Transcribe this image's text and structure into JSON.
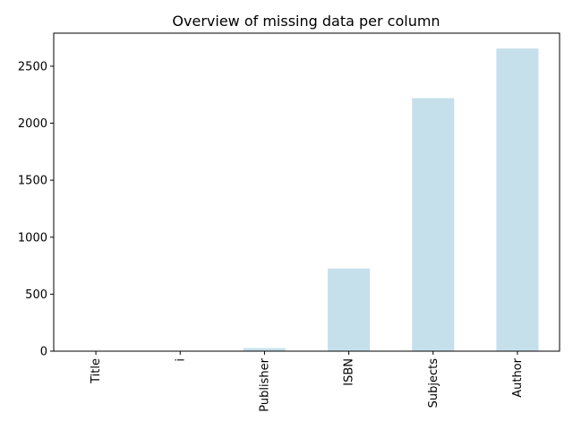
{
  "chart_data": {
    "type": "bar",
    "title": "Overview of missing data per column",
    "xlabel": "",
    "ylabel": "",
    "categories": [
      "Title",
      "i",
      "Publisher",
      "ISBN",
      "Subjects",
      "Author"
    ],
    "values": [
      0,
      0,
      27,
      725,
      2220,
      2655
    ],
    "ylim": [
      0,
      2790
    ],
    "yticks": [
      0,
      500,
      1000,
      1500,
      2000,
      2500
    ],
    "bar_color": "#c6e0eb",
    "grid": false,
    "legend": "none"
  }
}
